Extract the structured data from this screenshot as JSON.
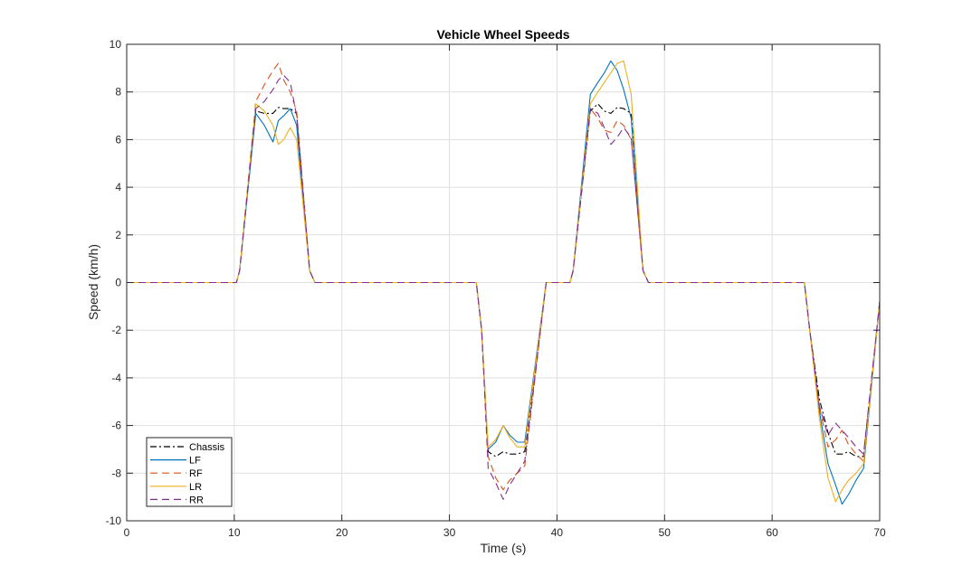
{
  "chart_data": {
    "type": "line",
    "title": "Vehicle Wheel Speeds",
    "xlabel": "Time (s)",
    "ylabel": "Speed (km/h)",
    "xlim": [
      0,
      70
    ],
    "ylim": [
      -10,
      10
    ],
    "xticks": [
      0,
      10,
      20,
      30,
      40,
      50,
      60,
      70
    ],
    "yticks": [
      -10,
      -8,
      -6,
      -4,
      -2,
      0,
      2,
      4,
      6,
      8,
      10
    ],
    "xtick_labels": [
      "0",
      "10",
      "20",
      "30",
      "40",
      "50",
      "60",
      "70"
    ],
    "ytick_labels": [
      "-10",
      "-8",
      "-6",
      "-4",
      "-2",
      "0",
      "2",
      "4",
      "6",
      "8",
      "10"
    ],
    "grid": true,
    "legend_position": "bottom-left",
    "series": [
      {
        "name": "Chassis",
        "color": "#000000",
        "dash": "dashdot",
        "x": [
          0,
          10.2,
          10.5,
          12,
          12.8,
          13.6,
          14.1,
          14.6,
          15.2,
          15.8,
          17,
          17.5,
          32.5,
          33,
          33.6,
          34.3,
          35,
          35.6,
          36.3,
          37,
          39,
          41.2,
          41.5,
          43.1,
          43.8,
          44.4,
          45,
          45.6,
          46.2,
          46.9,
          48,
          48.5,
          63,
          63.5,
          64.4,
          65.2,
          65.9,
          66.5,
          67.1,
          67.8,
          68.5,
          70
        ],
        "y": [
          0,
          0,
          0.5,
          7.2,
          7.1,
          7.1,
          7.35,
          7.3,
          7.3,
          7.1,
          0.5,
          0,
          0,
          -2,
          -7.1,
          -7.3,
          -7.1,
          -7.2,
          -7.2,
          -7.1,
          0,
          0,
          0.5,
          7.2,
          7.5,
          7.2,
          7.1,
          7.35,
          7.3,
          7.1,
          0.5,
          0,
          0,
          -2,
          -4.9,
          -6.3,
          -7.2,
          -7.2,
          -7.1,
          -7.3,
          -7.3,
          -0.8
        ]
      },
      {
        "name": "LF",
        "color": "#0072BD",
        "dash": "solid",
        "x": [
          0,
          10.2,
          10.5,
          12,
          12.8,
          13.6,
          14.1,
          14.6,
          15.2,
          15.8,
          17,
          17.5,
          32.5,
          33,
          33.6,
          34.3,
          35,
          35.6,
          36.3,
          37,
          39,
          41.2,
          41.5,
          43.1,
          43.8,
          44.4,
          45,
          45.6,
          46.2,
          46.9,
          48,
          48.5,
          63,
          63.5,
          64.4,
          65.2,
          65.9,
          66.5,
          67.1,
          67.8,
          68.5,
          70
        ],
        "y": [
          0,
          0,
          0.5,
          7.1,
          6.6,
          5.9,
          6.8,
          7.0,
          7.3,
          6.6,
          0.5,
          0,
          0,
          -2,
          -7.0,
          -6.7,
          -6.0,
          -6.4,
          -6.7,
          -6.7,
          0,
          0,
          0.5,
          7.9,
          8.4,
          8.8,
          9.3,
          8.9,
          8.1,
          6.9,
          0.5,
          0,
          0,
          -2,
          -5.4,
          -7.6,
          -8.5,
          -9.3,
          -8.9,
          -8.3,
          -7.8,
          -0.8
        ]
      },
      {
        "name": "RF",
        "color": "#D95319",
        "dash": "dashed",
        "x": [
          0,
          10.2,
          10.5,
          12,
          12.8,
          13.6,
          14.1,
          14.6,
          15.2,
          15.8,
          17,
          17.5,
          32.5,
          33,
          33.6,
          34.3,
          35,
          35.6,
          36.3,
          37,
          39,
          41.2,
          41.5,
          43.1,
          43.8,
          44.4,
          45,
          45.6,
          46.2,
          46.9,
          48,
          48.5,
          63,
          63.5,
          64.4,
          65.2,
          65.9,
          66.5,
          67.1,
          67.8,
          68.5,
          70
        ],
        "y": [
          0,
          0,
          0.5,
          7.6,
          8.3,
          8.9,
          9.2,
          8.5,
          8.0,
          7.2,
          0.5,
          0,
          0,
          -2,
          -7.3,
          -8.2,
          -8.7,
          -8.3,
          -8.0,
          -7.7,
          0,
          0,
          0.5,
          7.3,
          6.9,
          6.4,
          6.3,
          6.8,
          6.6,
          6.0,
          0.5,
          0,
          0,
          -2,
          -5.2,
          -6.9,
          -6.6,
          -6.2,
          -6.8,
          -7.2,
          -7.5,
          -0.8
        ]
      },
      {
        "name": "LR",
        "color": "#EDB120",
        "dash": "solid",
        "x": [
          0,
          10.2,
          10.5,
          12,
          12.8,
          13.6,
          14.1,
          14.6,
          15.2,
          15.8,
          17,
          17.5,
          32.5,
          33,
          33.6,
          34.3,
          35,
          35.6,
          36.3,
          37,
          39,
          41.2,
          41.5,
          43.1,
          43.8,
          44.4,
          45,
          45.6,
          46.2,
          46.9,
          48,
          48.5,
          63,
          63.5,
          64.4,
          65.2,
          65.9,
          66.5,
          67.1,
          67.8,
          68.5,
          70
        ],
        "y": [
          0,
          0,
          0.5,
          7.5,
          7.2,
          6.6,
          5.8,
          6.0,
          6.5,
          6.0,
          0.5,
          0,
          0,
          -2,
          -6.9,
          -6.6,
          -6.0,
          -6.5,
          -6.9,
          -6.9,
          0,
          0,
          0.5,
          7.5,
          8.0,
          8.4,
          8.8,
          9.2,
          9.3,
          7.9,
          0.5,
          0,
          0,
          -2,
          -5.7,
          -8.2,
          -9.2,
          -8.7,
          -8.3,
          -8.0,
          -7.6,
          -0.8
        ]
      },
      {
        "name": "RR",
        "color": "#7E2F8E",
        "dash": "dashed",
        "x": [
          0,
          10.2,
          10.5,
          12,
          12.8,
          13.6,
          14.1,
          14.6,
          15.2,
          15.8,
          17,
          17.5,
          32.5,
          33,
          33.6,
          34.3,
          35,
          35.6,
          36.3,
          37,
          39,
          41.2,
          41.5,
          43.1,
          43.8,
          44.4,
          45,
          45.6,
          46.2,
          46.9,
          48,
          48.5,
          63,
          63.5,
          64.4,
          65.2,
          65.9,
          66.5,
          67.1,
          67.8,
          68.5,
          70
        ],
        "y": [
          0,
          0,
          0.5,
          7.3,
          7.6,
          8.1,
          8.5,
          8.7,
          8.4,
          7.0,
          0.5,
          0,
          0,
          -2,
          -7.8,
          -8.4,
          -9.1,
          -8.5,
          -8.0,
          -7.5,
          0,
          0,
          0.5,
          7.3,
          7.1,
          6.5,
          5.8,
          6.1,
          6.5,
          6.1,
          0.5,
          0,
          0,
          -2,
          -5.2,
          -6.4,
          -5.9,
          -6.2,
          -6.5,
          -6.9,
          -7.2,
          -0.8
        ]
      }
    ]
  }
}
